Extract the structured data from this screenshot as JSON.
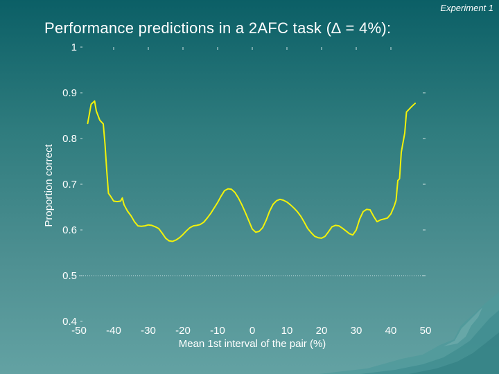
{
  "header": {
    "corner_label": "Experiment 1",
    "title": "Performance predictions in a 2AFC task (∆ = 4%):"
  },
  "colors": {
    "line": "#f2f20a",
    "text": "#ffffff"
  },
  "chart_data": {
    "type": "line",
    "xlabel": "Mean 1st interval of the pair (%)",
    "ylabel": "Proportion correct",
    "xlim": [
      -50,
      50
    ],
    "ylim": [
      0.4,
      1.0
    ],
    "xticks": [
      "-50",
      "-40",
      "-30",
      "-20",
      "-10",
      "0",
      "10",
      "20",
      "30",
      "40",
      "50"
    ],
    "yticks": [
      "0.4",
      "0.5",
      "0.6",
      "0.7",
      "0.8",
      "0.9",
      "1"
    ],
    "reference_line": 0.5,
    "series": [
      {
        "x": [
          -47.5,
          -46.5,
          -45.5,
          -45,
          -44,
          -43,
          -42.5,
          -42,
          -41.5,
          -41,
          -40,
          -39,
          -38,
          -37.5,
          -37,
          -36,
          -35,
          -34,
          -33,
          -32,
          -31,
          -30,
          -29,
          -28,
          -27,
          -26,
          -25,
          -24,
          -23,
          -22,
          -21,
          -20,
          -19,
          -18,
          -17,
          -16,
          -15,
          -14,
          -13,
          -12,
          -11,
          -10,
          -9,
          -8,
          -7,
          -6,
          -5,
          -4,
          -3,
          -2,
          -1,
          0,
          1,
          2,
          3,
          4,
          5,
          6,
          7,
          8,
          9,
          10,
          11,
          12,
          13,
          14,
          15,
          16,
          17,
          18,
          19,
          20,
          21,
          22,
          23,
          24,
          25,
          26,
          27,
          28,
          29,
          30,
          31,
          32,
          33,
          34,
          35,
          36,
          37,
          38,
          39,
          40,
          41,
          41.5,
          42,
          42.5,
          43,
          44,
          44.5,
          45,
          46,
          47
        ],
        "y": [
          0.833,
          0.875,
          0.882,
          0.86,
          0.84,
          0.832,
          0.788,
          0.73,
          0.68,
          0.675,
          0.663,
          0.662,
          0.663,
          0.67,
          0.655,
          0.641,
          0.631,
          0.618,
          0.609,
          0.608,
          0.609,
          0.611,
          0.61,
          0.607,
          0.603,
          0.593,
          0.582,
          0.576,
          0.575,
          0.578,
          0.583,
          0.59,
          0.598,
          0.605,
          0.609,
          0.61,
          0.612,
          0.617,
          0.626,
          0.636,
          0.648,
          0.66,
          0.674,
          0.686,
          0.69,
          0.689,
          0.682,
          0.67,
          0.655,
          0.638,
          0.62,
          0.602,
          0.595,
          0.597,
          0.605,
          0.621,
          0.641,
          0.656,
          0.664,
          0.667,
          0.665,
          0.661,
          0.655,
          0.648,
          0.64,
          0.63,
          0.617,
          0.603,
          0.594,
          0.586,
          0.583,
          0.582,
          0.586,
          0.596,
          0.607,
          0.61,
          0.609,
          0.604,
          0.598,
          0.592,
          0.589,
          0.6,
          0.624,
          0.64,
          0.645,
          0.644,
          0.63,
          0.618,
          0.622,
          0.624,
          0.626,
          0.635,
          0.653,
          0.665,
          0.708,
          0.712,
          0.77,
          0.812,
          0.858,
          0.862,
          0.87,
          0.877
        ]
      }
    ]
  }
}
